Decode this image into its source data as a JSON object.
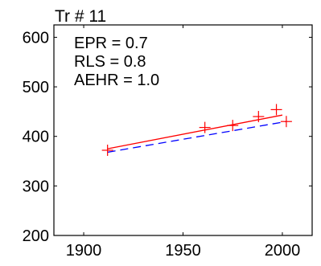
{
  "chart_data": {
    "type": "scatter",
    "title": "Tr # 11",
    "xlabel": "",
    "ylabel": "",
    "xlim": [
      1885,
      2015
    ],
    "ylim": [
      200,
      625
    ],
    "xticks": [
      1900,
      1950,
      2000
    ],
    "yticks": [
      200,
      300,
      400,
      500,
      600
    ],
    "grid": false,
    "annotations": [
      "EPR = 0.7",
      "RLS = 0.8",
      "AEHR = 1.0"
    ],
    "points": {
      "marker": "plus",
      "color": "#ff0000",
      "x": [
        1912,
        1961,
        1975,
        1988,
        1997,
        2002
      ],
      "y": [
        372,
        418,
        422,
        440,
        454,
        430
      ]
    },
    "fit_lines": [
      {
        "style": "solid",
        "color": "#ff0000",
        "x": [
          1912,
          2000
        ],
        "y": [
          375,
          443
        ]
      },
      {
        "style": "dashed",
        "color": "#0000ff",
        "x": [
          1912,
          2002
        ],
        "y": [
          368,
          430
        ]
      }
    ]
  }
}
